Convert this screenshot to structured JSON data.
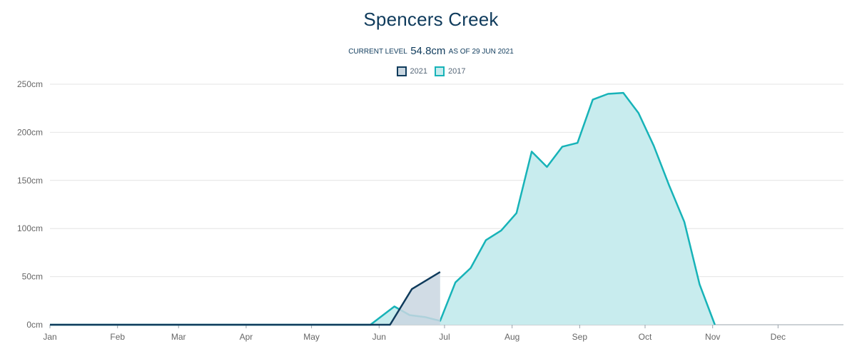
{
  "chart_data": {
    "type": "area",
    "title": "Spencers Creek",
    "subtitle": {
      "prefix": "CURRENT LEVEL",
      "level": "54.8cm",
      "suffix": "AS OF 29 JUN 2021"
    },
    "legend_position": "top-center",
    "grid": true,
    "x_tick_labels": [
      "Jan",
      "Feb",
      "Mar",
      "Apr",
      "May",
      "Jun",
      "Jul",
      "Aug",
      "Sep",
      "Oct",
      "Nov",
      "Dec"
    ],
    "y_tick_labels": [
      "0cm",
      "50cm",
      "100cm",
      "150cm",
      "200cm",
      "250cm"
    ],
    "y_unit": "cm",
    "ylim": [
      0,
      250
    ],
    "xlim": [
      "2021-01-01",
      "2021-12-31"
    ],
    "series": [
      {
        "name": "2021",
        "color": "#0f3b5c",
        "fill": "#c9d6e0",
        "points": [
          [
            "2021-01-01",
            0
          ],
          [
            "2021-06-06",
            0
          ],
          [
            "2021-06-16",
            37
          ],
          [
            "2021-06-29",
            54.8
          ]
        ]
      },
      {
        "name": "2017",
        "color": "#17b3b8",
        "fill": "#c8ecee",
        "points": [
          [
            "2021-01-01",
            0
          ],
          [
            "2021-05-28",
            0
          ],
          [
            "2021-06-08",
            19
          ],
          [
            "2021-06-15",
            10
          ],
          [
            "2021-06-22",
            8
          ],
          [
            "2021-06-29",
            4
          ],
          [
            "2021-07-06",
            44
          ],
          [
            "2021-07-13",
            59
          ],
          [
            "2021-07-20",
            88
          ],
          [
            "2021-07-27",
            98
          ],
          [
            "2021-08-03",
            116
          ],
          [
            "2021-08-10",
            180
          ],
          [
            "2021-08-17",
            164
          ],
          [
            "2021-08-24",
            185
          ],
          [
            "2021-08-31",
            189
          ],
          [
            "2021-09-07",
            234
          ],
          [
            "2021-09-14",
            240
          ],
          [
            "2021-09-21",
            241
          ],
          [
            "2021-09-28",
            220
          ],
          [
            "2021-10-05",
            186
          ],
          [
            "2021-10-12",
            145
          ],
          [
            "2021-10-19",
            107
          ],
          [
            "2021-10-26",
            42
          ],
          [
            "2021-11-02",
            0
          ]
        ]
      }
    ]
  }
}
